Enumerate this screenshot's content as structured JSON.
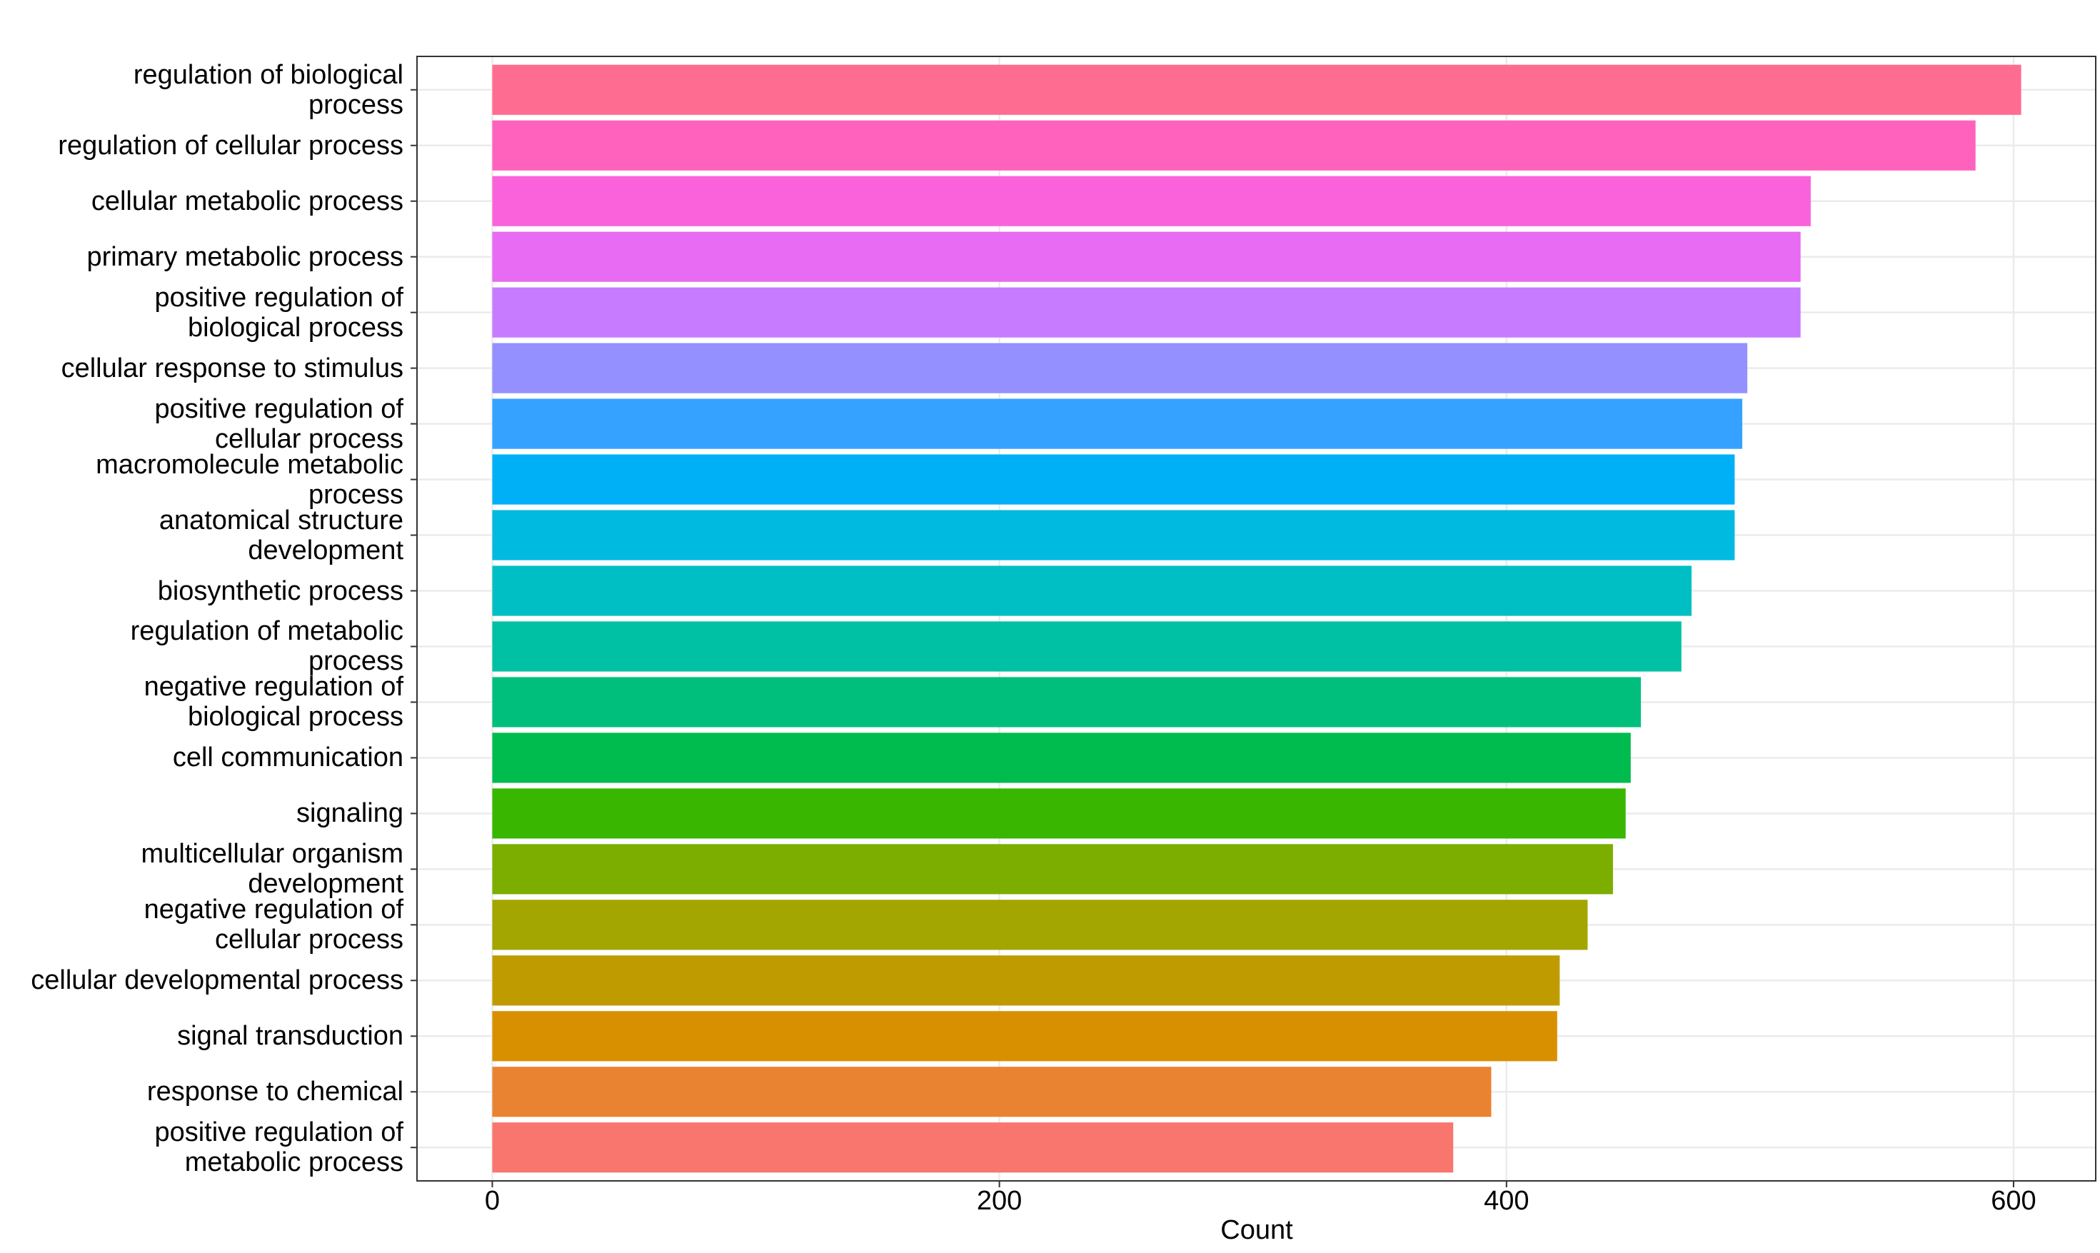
{
  "chart_data": {
    "type": "bar",
    "orientation": "horizontal",
    "x_label": "Count",
    "categories": [
      "regulation of biological\nprocess",
      "regulation of cellular process",
      "cellular metabolic process",
      "primary metabolic process",
      "positive regulation of\nbiological process",
      "cellular response to stimulus",
      "positive regulation of\ncellular process",
      "macromolecule metabolic\nprocess",
      "anatomical structure\ndevelopment",
      "biosynthetic process",
      "regulation of metabolic\nprocess",
      "negative regulation of\nbiological process",
      "cell communication",
      "signaling",
      "multicellular organism\ndevelopment",
      "negative regulation of\ncellular process",
      "cellular developmental process",
      "signal transduction",
      "response to chemical",
      "positive regulation of\nmetabolic process"
    ],
    "values": [
      603,
      585,
      520,
      516,
      516,
      495,
      493,
      490,
      490,
      473,
      469,
      453,
      449,
      447,
      442,
      432,
      421,
      420,
      394,
      379
    ],
    "colors": [
      "#FF6C91",
      "#FF62BC",
      "#FA62DB",
      "#E76BF3",
      "#C77CFF",
      "#9590FF",
      "#35A2FF",
      "#00B0F6",
      "#00BAE0",
      "#00BFC4",
      "#00C1A3",
      "#00BF7D",
      "#00BB4E",
      "#39B600",
      "#7CAE00",
      "#A3A500",
      "#C09B00",
      "#D89000",
      "#EA8331",
      "#F8766D"
    ],
    "xlim": [
      -29.7,
      632.4
    ],
    "xticks": [
      0,
      200,
      400,
      600
    ],
    "grid": true
  }
}
